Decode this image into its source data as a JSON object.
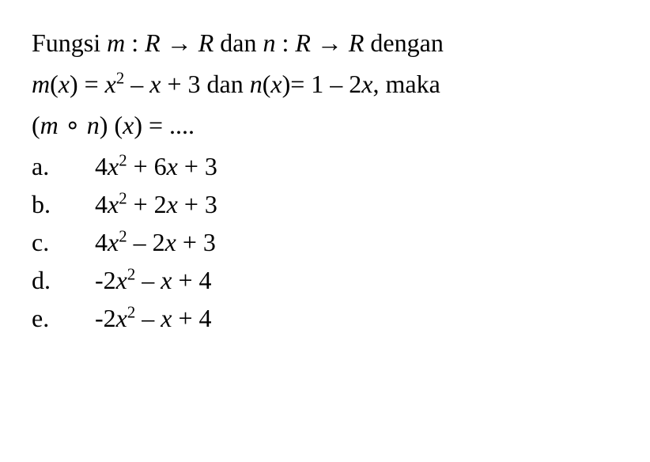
{
  "question": {
    "line1_parts": {
      "p1": "Fungsi ",
      "p2": "m",
      "p3": " : ",
      "p4": "R",
      "p5": " → ",
      "p6": "R",
      "p7": " dan ",
      "p8": "n",
      "p9": " : ",
      "p10": "R",
      "p11": " → ",
      "p12": "R",
      "p13": " dengan"
    },
    "line2_parts": {
      "p1": "m",
      "p2": "(",
      "p3": "x",
      "p4": ") = ",
      "p5": "x",
      "p6": "2",
      "p7": " – ",
      "p8": "x",
      "p9": " + 3 dan ",
      "p10": "n",
      "p11": "(",
      "p12": "x",
      "p13": ")= 1 – 2",
      "p14": "x",
      "p15": ", maka"
    },
    "line3_parts": {
      "p1": "(",
      "p2": "m",
      "p3": " ∘ ",
      "p4": "n",
      "p5": ") (",
      "p6": "x",
      "p7": ") = ...."
    }
  },
  "options": {
    "a": {
      "label": "a.",
      "parts": {
        "p1": "4",
        "p2": "x",
        "p3": "2",
        "p4": " + 6",
        "p5": "x",
        "p6": " + 3"
      }
    },
    "b": {
      "label": "b.",
      "parts": {
        "p1": "4",
        "p2": "x",
        "p3": "2",
        "p4": " + 2",
        "p5": "x",
        "p6": " + 3"
      }
    },
    "c": {
      "label": "c.",
      "parts": {
        "p1": "4",
        "p2": "x",
        "p3": "2",
        "p4": " – 2",
        "p5": "x",
        "p6": " + 3"
      }
    },
    "d": {
      "label": "d.",
      "parts": {
        "p1": "-2",
        "p2": "x",
        "p3": "2",
        "p4": " – ",
        "p5": "x",
        "p6": " + 4"
      }
    },
    "e": {
      "label": "e.",
      "parts": {
        "p1": "-2",
        "p2": "x",
        "p3": "2",
        "p4": " – ",
        "p5": "x",
        "p6": " + 4"
      }
    }
  },
  "style": {
    "font_size_pt": 32,
    "text_color": "#000000",
    "background_color": "#ffffff",
    "font_family": "Times New Roman"
  }
}
